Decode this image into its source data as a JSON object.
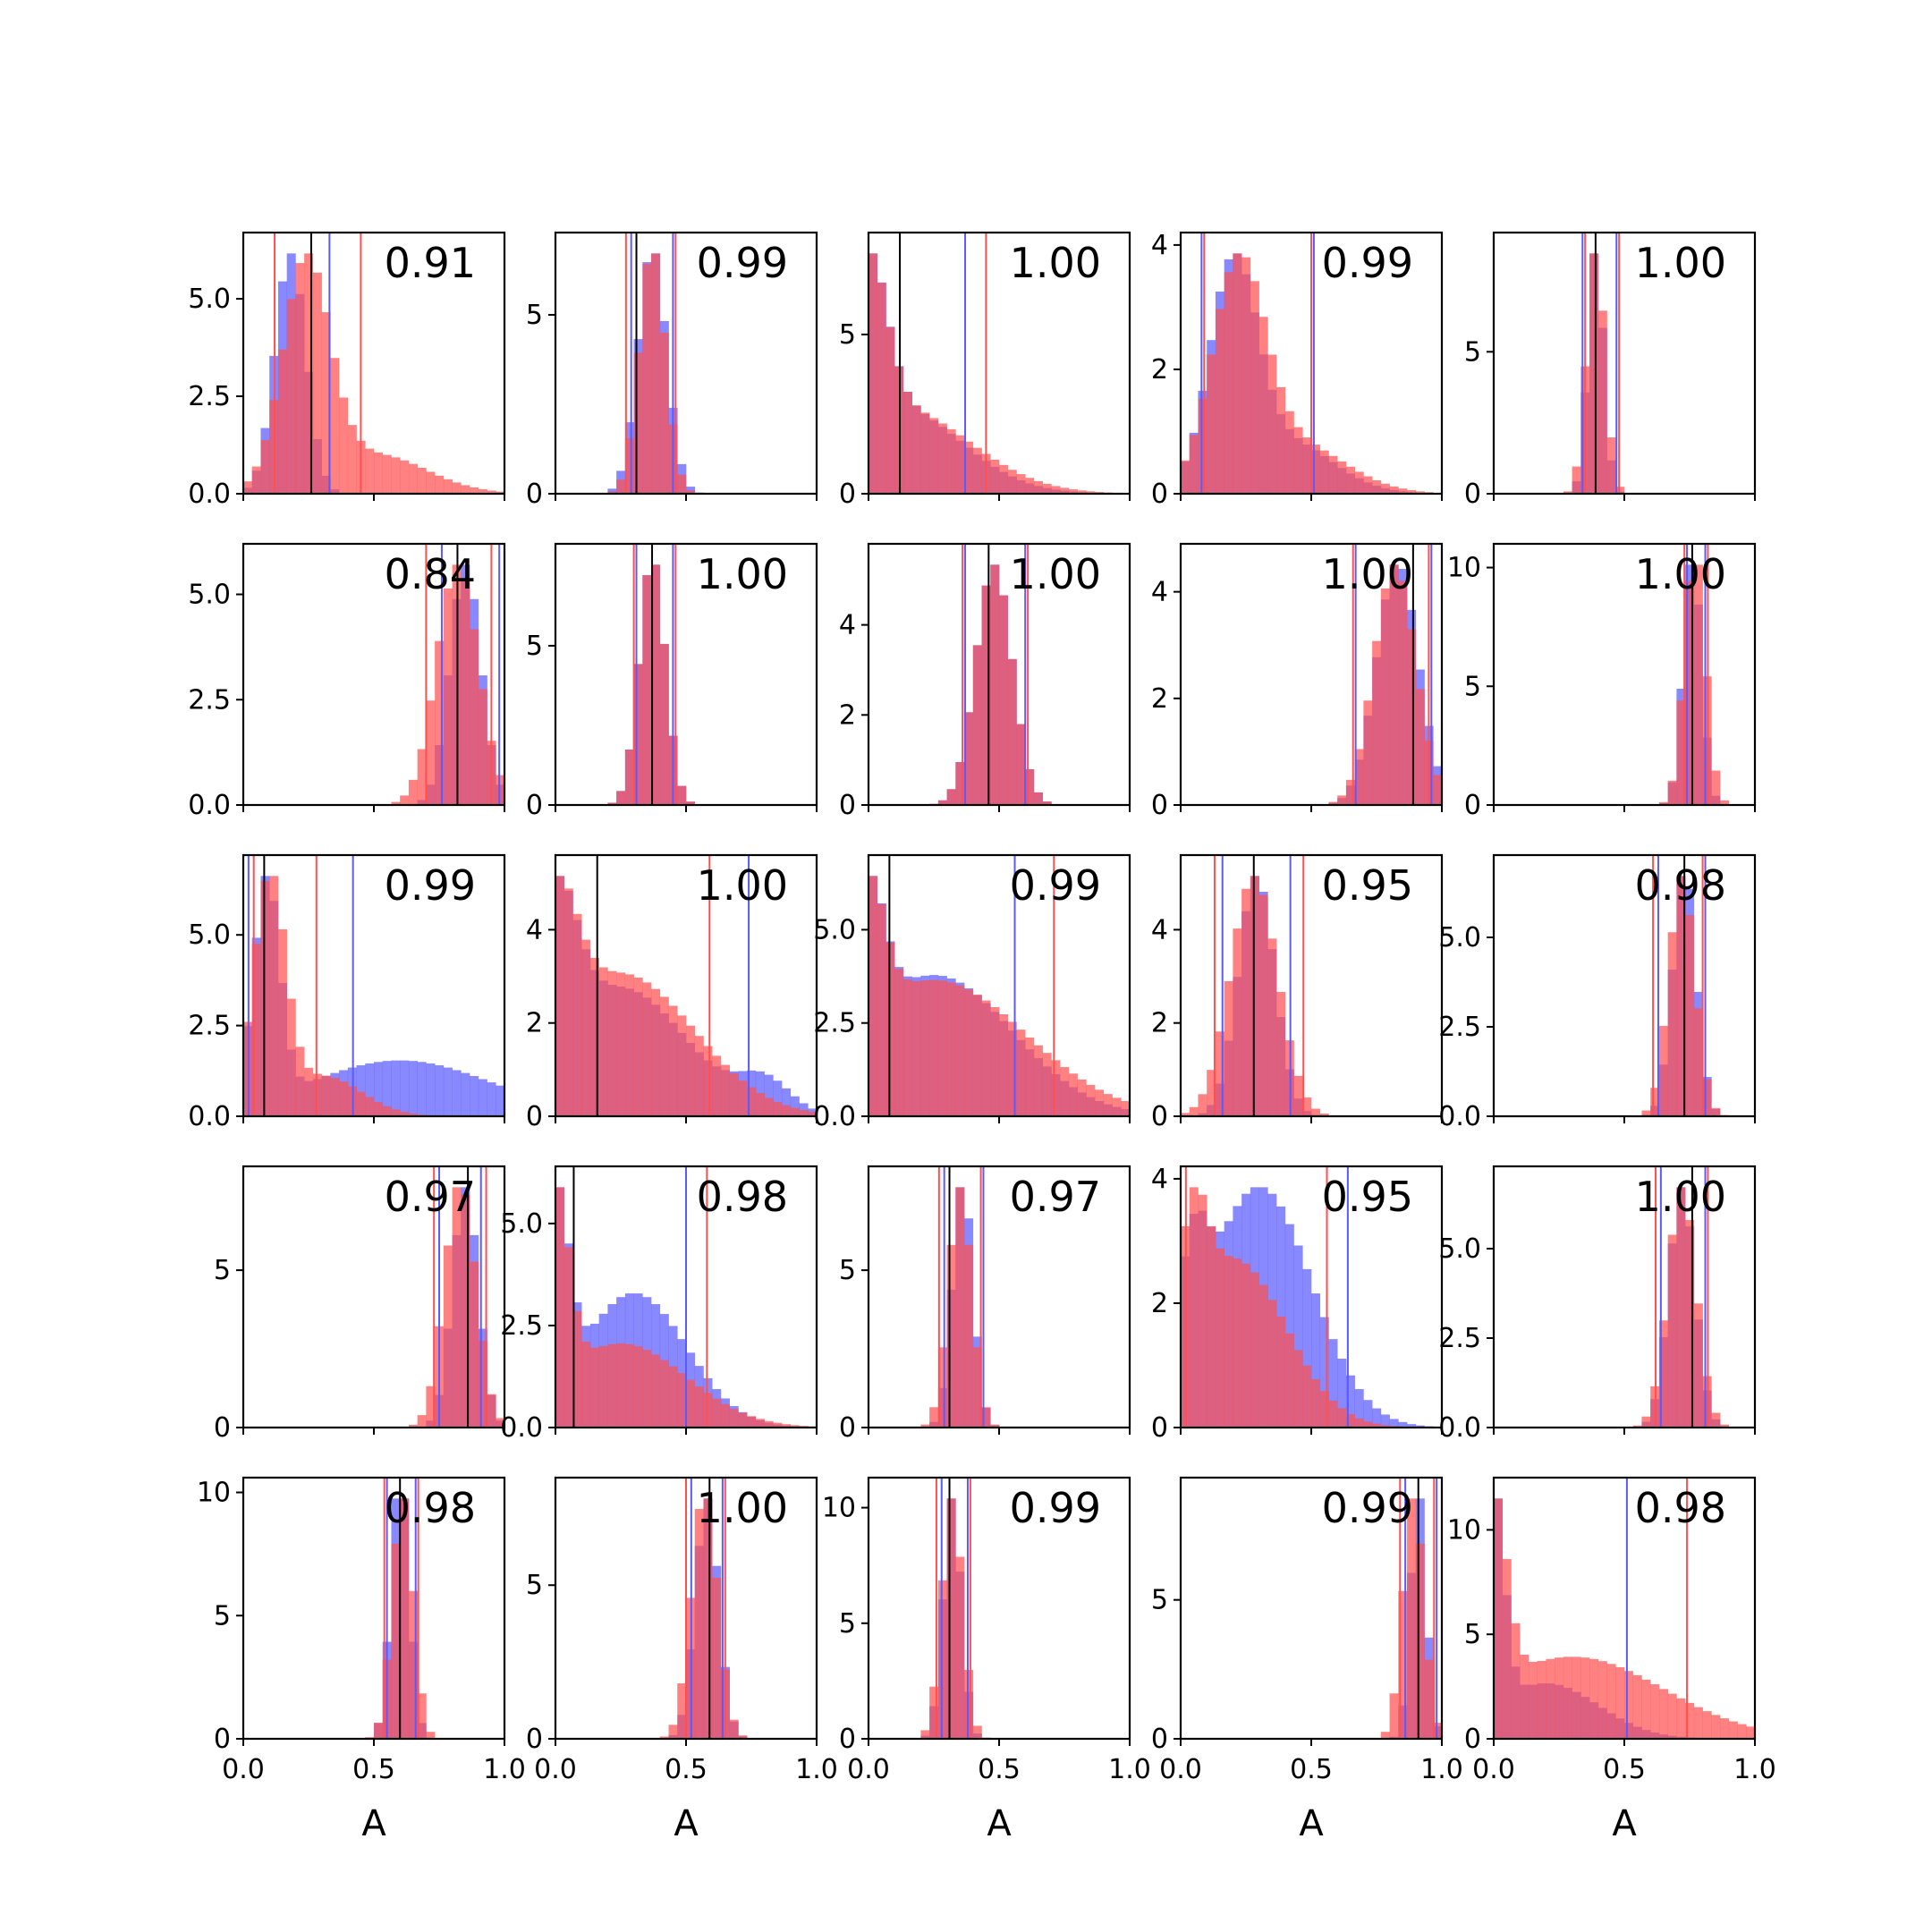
{
  "chart_data": {
    "type": "histogram-grid",
    "rows": 5,
    "cols": 5,
    "xlim": [
      0,
      1
    ],
    "xticks": [
      "0.0",
      "0.5",
      "1.0"
    ],
    "xlabel": "A",
    "series_colors": {
      "blue": "#5a5aff",
      "red": "#ff5050",
      "black": "#000000"
    },
    "panels": [
      {
        "corr": "0.91",
        "ylim": [
          0,
          6.7
        ],
        "yticks": [
          "0.0",
          "2.5",
          "5.0"
        ],
        "dists": {
          "blue": [
            [
              0.18,
              0.06,
              1.0
            ]
          ],
          "red": [
            [
              0.24,
              0.09,
              0.85
            ],
            [
              0.5,
              0.2,
              0.15
            ]
          ]
        },
        "vlines": {
          "red": [
            0.12,
            0.45
          ],
          "blue": [
            0.33
          ],
          "black": [
            0.26
          ]
        }
      },
      {
        "corr": "0.99",
        "ylim": [
          0,
          7.3
        ],
        "yticks": [
          "0",
          "5"
        ],
        "dists": {
          "blue": [
            [
              0.37,
              0.055,
              1.0
            ]
          ],
          "red": [
            [
              0.37,
              0.05,
              1.0
            ]
          ]
        },
        "vlines": {
          "red": [
            0.27,
            0.46
          ],
          "blue": [
            0.29,
            0.45
          ],
          "black": [
            0.31
          ]
        }
      },
      {
        "corr": "1.00",
        "ylim": [
          0,
          8.2
        ],
        "yticks": [
          "0",
          "5"
        ],
        "dists": {
          "blue": [
            [
              0.0,
              0.07,
              0.65
            ],
            [
              0.1,
              0.25,
              0.35
            ]
          ],
          "red": [
            [
              0.0,
              0.07,
              0.65
            ],
            [
              0.1,
              0.28,
              0.35
            ]
          ]
        },
        "vlines": {
          "red": [
            0.45
          ],
          "blue": [
            0.37
          ],
          "black": [
            0.12
          ]
        }
      },
      {
        "corr": "0.99",
        "ylim": [
          0,
          4.2
        ],
        "yticks": [
          "0",
          "2",
          "4"
        ],
        "dists": {
          "blue": [
            [
              0.2,
              0.09,
              0.8
            ],
            [
              0.4,
              0.18,
              0.2
            ]
          ],
          "red": [
            [
              0.22,
              0.1,
              0.8
            ],
            [
              0.42,
              0.2,
              0.2
            ]
          ]
        },
        "vlines": {
          "red": [
            0.09,
            0.5
          ],
          "blue": [
            0.08,
            0.51
          ],
          "black": []
        }
      },
      {
        "corr": "1.00",
        "ylim": [
          0,
          9.2
        ],
        "yticks": [
          "0",
          "5"
        ],
        "dists": {
          "blue": [
            [
              0.39,
              0.03,
              1.0
            ]
          ],
          "red": [
            [
              0.39,
              0.035,
              1.0
            ]
          ]
        },
        "vlines": {
          "red": [
            0.35,
            0.48
          ],
          "blue": [
            0.34,
            0.47
          ],
          "black": [
            0.39
          ]
        }
      },
      {
        "corr": "0.84",
        "ylim": [
          0,
          6.2
        ],
        "yticks": [
          "0.0",
          "2.5",
          "5.0"
        ],
        "dists": {
          "blue": [
            [
              0.85,
              0.06,
              1.0
            ]
          ],
          "red": [
            [
              0.82,
              0.08,
              1.0
            ]
          ]
        },
        "vlines": {
          "red": [
            0.7,
            0.95
          ],
          "blue": [
            0.76,
            0.98
          ],
          "black": [
            0.82
          ]
        }
      },
      {
        "corr": "1.00",
        "ylim": [
          0,
          8.2
        ],
        "yticks": [
          "0",
          "5"
        ],
        "dists": {
          "blue": [
            [
              0.37,
              0.05,
              1.0
            ]
          ],
          "red": [
            [
              0.37,
              0.05,
              1.0
            ]
          ]
        },
        "vlines": {
          "red": [
            0.3,
            0.46
          ],
          "blue": [
            0.31,
            0.45
          ],
          "black": [
            0.37
          ]
        }
      },
      {
        "corr": "1.00",
        "ylim": [
          0,
          5.8
        ],
        "yticks": [
          "0",
          "2",
          "4"
        ],
        "dists": {
          "blue": [
            [
              0.48,
              0.07,
              1.0
            ]
          ],
          "red": [
            [
              0.48,
              0.07,
              1.0
            ]
          ]
        },
        "vlines": {
          "red": [
            0.36,
            0.61
          ],
          "blue": [
            0.37,
            0.6
          ],
          "black": [
            0.46
          ]
        }
      },
      {
        "corr": "1.00",
        "ylim": [
          0,
          4.9
        ],
        "yticks": [
          "0",
          "2",
          "4"
        ],
        "dists": {
          "blue": [
            [
              0.83,
              0.08,
              1.0
            ]
          ],
          "red": [
            [
              0.82,
              0.08,
              1.0
            ]
          ]
        },
        "vlines": {
          "red": [
            0.66,
            0.95
          ],
          "blue": [
            0.67,
            0.96
          ],
          "black": [
            0.89
          ]
        }
      },
      {
        "corr": "1.00",
        "ylim": [
          0,
          11.0
        ],
        "yticks": [
          "0",
          "5",
          "10"
        ],
        "dists": {
          "blue": [
            [
              0.76,
              0.035,
              1.0
            ]
          ],
          "red": [
            [
              0.77,
              0.04,
              1.0
            ]
          ]
        },
        "vlines": {
          "red": [
            0.73,
            0.82
          ],
          "blue": [
            0.74,
            0.81
          ],
          "black": [
            0.76
          ]
        }
      },
      {
        "corr": "0.99",
        "ylim": [
          0,
          7.2
        ],
        "yticks": [
          "0.0",
          "2.5",
          "5.0"
        ],
        "dists": {
          "blue": [
            [
              0.09,
              0.05,
              0.8
            ],
            [
              0.6,
              0.35,
              0.2
            ]
          ],
          "red": [
            [
              0.1,
              0.06,
              0.85
            ],
            [
              0.3,
              0.15,
              0.15
            ]
          ]
        },
        "vlines": {
          "red": [
            0.04,
            0.28
          ],
          "blue": [
            0.02,
            0.42
          ],
          "black": [
            0.08
          ]
        }
      },
      {
        "corr": "1.00",
        "ylim": [
          0,
          5.6
        ],
        "yticks": [
          "0",
          "2",
          "4"
        ],
        "dists": {
          "blue": [
            [
              0.0,
              0.08,
              0.5
            ],
            [
              0.25,
              0.25,
              0.4
            ],
            [
              0.8,
              0.1,
              0.1
            ]
          ],
          "red": [
            [
              0.0,
              0.08,
              0.5
            ],
            [
              0.25,
              0.28,
              0.5
            ]
          ]
        },
        "vlines": {
          "red": [
            0.59
          ],
          "blue": [
            0.74
          ],
          "black": [
            0.16
          ]
        }
      },
      {
        "corr": "0.99",
        "ylim": [
          0,
          7.0
        ],
        "yticks": [
          "0.0",
          "2.5",
          "5.0"
        ],
        "dists": {
          "blue": [
            [
              0.0,
              0.06,
              0.5
            ],
            [
              0.25,
              0.3,
              0.5
            ]
          ],
          "red": [
            [
              0.0,
              0.06,
              0.5
            ],
            [
              0.25,
              0.35,
              0.5
            ]
          ]
        },
        "vlines": {
          "red": [
            0.71
          ],
          "blue": [
            0.56
          ],
          "black": [
            0.08
          ]
        }
      },
      {
        "corr": "0.95",
        "ylim": [
          0,
          5.6
        ],
        "yticks": [
          "0",
          "2",
          "4"
        ],
        "dists": {
          "blue": [
            [
              0.29,
              0.07,
              1.0
            ]
          ],
          "red": [
            [
              0.28,
              0.09,
              1.0
            ]
          ]
        },
        "vlines": {
          "red": [
            0.13,
            0.47
          ],
          "blue": [
            0.16,
            0.42
          ],
          "black": [
            0.28
          ]
        }
      },
      {
        "corr": "0.98",
        "ylim": [
          0,
          7.3
        ],
        "yticks": [
          "0.0",
          "2.5",
          "5.0"
        ],
        "dists": {
          "blue": [
            [
              0.73,
              0.045,
              1.0
            ]
          ],
          "red": [
            [
              0.72,
              0.05,
              1.0
            ]
          ]
        },
        "vlines": {
          "red": [
            0.61,
            0.8
          ],
          "blue": [
            0.63,
            0.81
          ],
          "black": [
            0.73
          ]
        }
      },
      {
        "corr": "0.97",
        "ylim": [
          0,
          8.3
        ],
        "yticks": [
          "0",
          "5"
        ],
        "dists": {
          "blue": [
            [
              0.85,
              0.05,
              1.0
            ]
          ],
          "red": [
            [
              0.83,
              0.06,
              1.0
            ]
          ]
        },
        "vlines": {
          "red": [
            0.73,
            0.93
          ],
          "blue": [
            0.75,
            0.91
          ],
          "black": [
            0.86
          ]
        }
      },
      {
        "corr": "0.98",
        "ylim": [
          0,
          6.4
        ],
        "yticks": [
          "0.0",
          "2.5",
          "5.0"
        ],
        "dists": {
          "blue": [
            [
              0.0,
              0.05,
              0.6
            ],
            [
              0.3,
              0.2,
              0.4
            ]
          ],
          "red": [
            [
              0.0,
              0.05,
              0.7
            ],
            [
              0.25,
              0.25,
              0.3
            ]
          ]
        },
        "vlines": {
          "red": [
            0.58
          ],
          "blue": [
            0.5
          ],
          "black": [
            0.07
          ]
        }
      },
      {
        "corr": "0.97",
        "ylim": [
          0,
          8.3
        ],
        "yticks": [
          "0",
          "5"
        ],
        "dists": {
          "blue": [
            [
              0.36,
              0.04,
              1.0
            ]
          ],
          "red": [
            [
              0.35,
              0.045,
              1.0
            ]
          ]
        },
        "vlines": {
          "red": [
            0.27,
            0.43
          ],
          "blue": [
            0.29,
            0.44
          ],
          "black": [
            0.31
          ]
        }
      },
      {
        "corr": "0.95",
        "ylim": [
          0,
          4.2
        ],
        "yticks": [
          "0",
          "2",
          "4"
        ],
        "dists": {
          "blue": [
            [
              0.05,
              0.05,
              0.3
            ],
            [
              0.3,
              0.2,
              0.7
            ]
          ],
          "red": [
            [
              0.05,
              0.05,
              0.4
            ],
            [
              0.2,
              0.2,
              0.6
            ]
          ]
        },
        "vlines": {
          "red": [
            0.02,
            0.56
          ],
          "blue": [
            0.64
          ],
          "black": []
        }
      },
      {
        "corr": "1.00",
        "ylim": [
          0,
          7.3
        ],
        "yticks": [
          "0.0",
          "2.5",
          "5.0"
        ],
        "dists": {
          "blue": [
            [
              0.72,
              0.05,
              1.0
            ]
          ],
          "red": [
            [
              0.72,
              0.055,
              1.0
            ]
          ]
        },
        "vlines": {
          "red": [
            0.62,
            0.82
          ],
          "blue": [
            0.64,
            0.81
          ],
          "black": [
            0.76
          ]
        }
      },
      {
        "corr": "0.98",
        "ylim": [
          0,
          10.6
        ],
        "yticks": [
          "0",
          "5",
          "10"
        ],
        "dists": {
          "blue": [
            [
              0.6,
              0.035,
              1.0
            ]
          ],
          "red": [
            [
              0.61,
              0.04,
              1.0
            ]
          ]
        },
        "vlines": {
          "red": [
            0.54,
            0.67
          ],
          "blue": [
            0.55,
            0.66
          ],
          "black": [
            0.6
          ]
        }
      },
      {
        "corr": "1.00",
        "ylim": [
          0,
          8.5
        ],
        "yticks": [
          "0",
          "5"
        ],
        "dists": {
          "blue": [
            [
              0.58,
              0.045,
              1.0
            ]
          ],
          "red": [
            [
              0.57,
              0.05,
              1.0
            ]
          ]
        },
        "vlines": {
          "red": [
            0.5,
            0.65
          ],
          "blue": [
            0.52,
            0.64
          ],
          "black": [
            0.59
          ]
        }
      },
      {
        "corr": "0.99",
        "ylim": [
          0,
          11.3
        ],
        "yticks": [
          "0",
          "5",
          "10"
        ],
        "dists": {
          "blue": [
            [
              0.32,
              0.035,
              1.0
            ]
          ],
          "red": [
            [
              0.32,
              0.04,
              1.0
            ]
          ]
        },
        "vlines": {
          "red": [
            0.26,
            0.39
          ],
          "blue": [
            0.28,
            0.38
          ],
          "black": [
            0.31
          ]
        }
      },
      {
        "corr": "0.99",
        "ylim": [
          0,
          9.4
        ],
        "yticks": [
          "0",
          "5"
        ],
        "dists": {
          "blue": [
            [
              0.91,
              0.03,
              1.0
            ]
          ],
          "red": [
            [
              0.89,
              0.04,
              1.0
            ]
          ]
        },
        "vlines": {
          "red": [
            0.84,
            0.97
          ],
          "blue": [
            0.86,
            0.98
          ],
          "black": [
            0.91
          ]
        }
      },
      {
        "corr": "0.98",
        "ylim": [
          0,
          12.5
        ],
        "yticks": [
          "0",
          "5",
          "10"
        ],
        "dists": {
          "blue": [
            [
              0.0,
              0.04,
              0.8
            ],
            [
              0.2,
              0.2,
              0.2
            ]
          ],
          "red": [
            [
              0.0,
              0.05,
              0.7
            ],
            [
              0.3,
              0.35,
              0.3
            ]
          ]
        },
        "vlines": {
          "red": [
            0.74
          ],
          "blue": [
            0.51
          ],
          "black": []
        }
      }
    ]
  }
}
